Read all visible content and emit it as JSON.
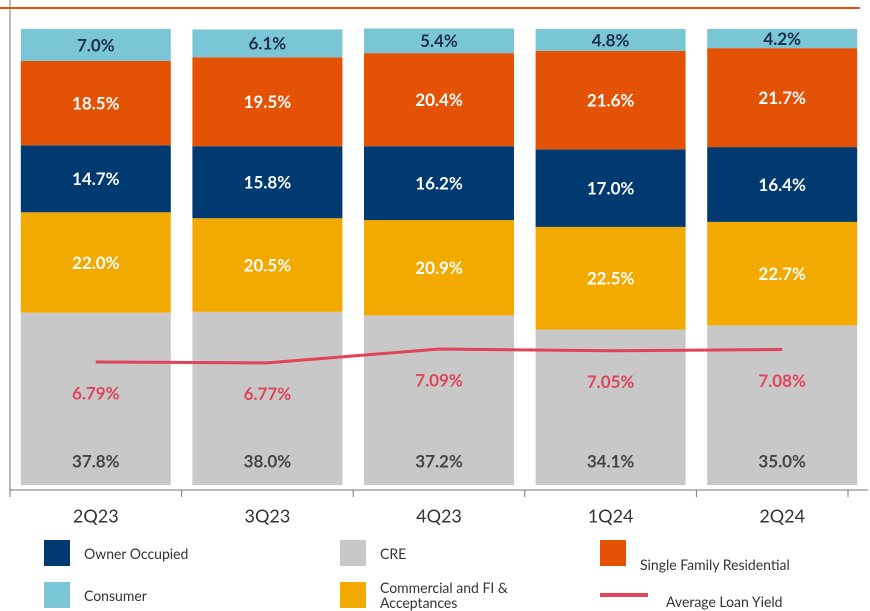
{
  "chart_data": {
    "type": "stacked_bar_line",
    "categories": [
      "2Q23",
      "3Q23",
      "4Q23",
      "1Q24",
      "2Q24"
    ],
    "ylim": [
      0,
      100
    ],
    "y2lim": [
      3.95,
      14.48
    ],
    "series": [
      {
        "name": "CRE",
        "color": "#c8c8c8",
        "values": [
          37.8,
          38.0,
          37.2,
          34.1,
          35.0
        ],
        "value_labels": [
          "37.8%",
          "38.0%",
          "37.2%",
          "34.1%",
          "35.0%"
        ]
      },
      {
        "name": "Commercial and FI & Acceptances",
        "color": "#f2a900",
        "values": [
          22.0,
          20.5,
          20.9,
          22.5,
          22.7
        ],
        "value_labels": [
          "22.0%",
          "20.5%",
          "20.9%",
          "22.5%",
          "22.7%"
        ]
      },
      {
        "name": "Owner Occupied",
        "color": "#003a70",
        "values": [
          14.7,
          15.8,
          16.2,
          17.0,
          16.4
        ],
        "value_labels": [
          "14.7%",
          "15.8%",
          "16.2%",
          "17.0%",
          "16.4%"
        ]
      },
      {
        "name": "Single Family Residential",
        "color": "#e35205",
        "values": [
          18.5,
          19.5,
          20.4,
          21.6,
          21.7
        ],
        "value_labels": [
          "18.5%",
          "19.5%",
          "20.4%",
          "21.6%",
          "21.7%"
        ]
      },
      {
        "name": "Consumer",
        "color": "#7ac6d6",
        "values": [
          7.0,
          6.1,
          5.4,
          4.8,
          4.2
        ],
        "value_labels": [
          "7.0%",
          "6.1%",
          "5.4%",
          "4.8%",
          "4.2%"
        ]
      },
      {
        "name": "Average Loan Yield",
        "color": "#e0435a",
        "axis": "y2",
        "kind": "line",
        "values": [
          6.79,
          6.77,
          7.09,
          7.05,
          7.08
        ],
        "value_labels": [
          "6.79%",
          "6.77%",
          "7.09%",
          "7.05%",
          "7.08%"
        ]
      }
    ]
  }
}
